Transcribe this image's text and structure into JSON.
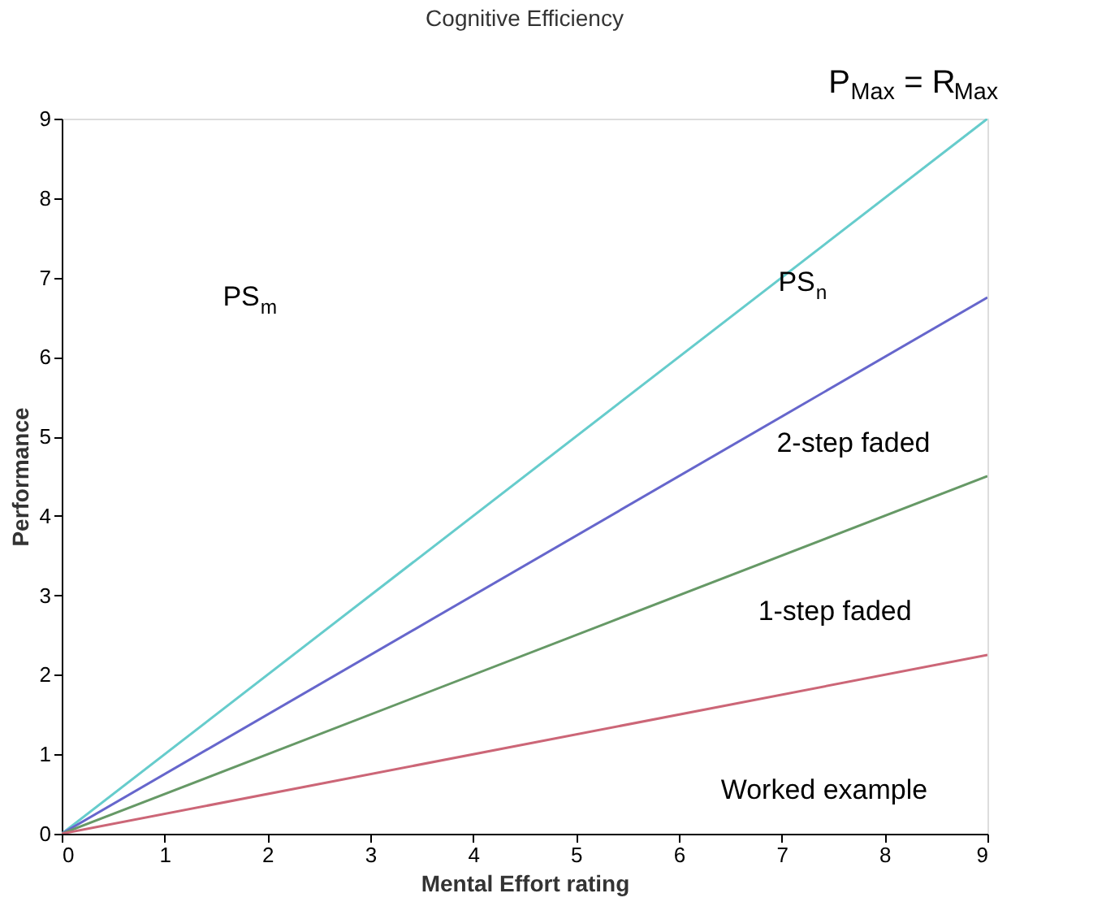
{
  "chart_data": {
    "type": "line",
    "title": "Cognitive Efficiency",
    "xlabel": "Mental Effort rating",
    "ylabel": "Performance",
    "x": [
      0,
      9
    ],
    "series": [
      {
        "color": "#66cccc",
        "values": [
          0,
          9
        ]
      },
      {
        "color": "#6666cc",
        "values": [
          0,
          6.75
        ]
      },
      {
        "color": "#669966",
        "values": [
          0,
          4.5
        ]
      },
      {
        "color": "#cc6677",
        "values": [
          0,
          2.25
        ]
      }
    ],
    "xlim": [
      0,
      9
    ],
    "ylim": [
      0,
      9
    ],
    "xticks": [
      0,
      1,
      2,
      3,
      4,
      5,
      6,
      7,
      8,
      9
    ],
    "yticks": [
      0,
      1,
      2,
      3,
      4,
      5,
      6,
      7,
      8,
      9
    ],
    "grid": false,
    "legend": false,
    "marker": "none",
    "line_style": "solid",
    "annotations": [
      "P$_{Max}$ = R$_{Max}$",
      "PS$_{m}$",
      "PS$_{n}$",
      "2-step faded",
      "1-step faded",
      "Worked example"
    ]
  }
}
